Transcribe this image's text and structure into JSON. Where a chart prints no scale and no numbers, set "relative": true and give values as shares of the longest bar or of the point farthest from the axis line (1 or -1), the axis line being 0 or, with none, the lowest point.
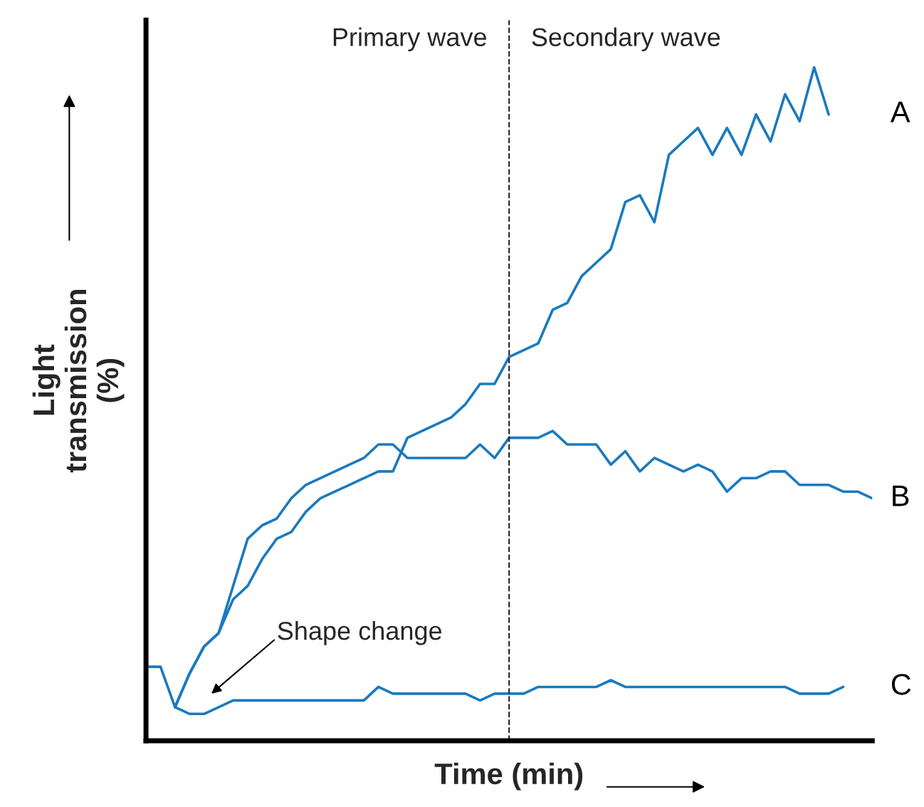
{
  "chart_data": {
    "type": "line",
    "relative": true,
    "xlabel": "Time (min)",
    "ylabel": "Light\ntransmission\n(%)",
    "categories": [
      null,
      null,
      null,
      null,
      null,
      null,
      null,
      null,
      null,
      null,
      null,
      null,
      null,
      null,
      null,
      null,
      null,
      null,
      null,
      null,
      null,
      null,
      null,
      null,
      null,
      null,
      null,
      null,
      null,
      null,
      null,
      null,
      null,
      null,
      null,
      null,
      null,
      null,
      null,
      null,
      null,
      null,
      null,
      null,
      null,
      null,
      null,
      null,
      null,
      null,
      null
    ],
    "series": [
      {
        "name": "A",
        "color": "#1a7abf",
        "values": [
          null,
          null,
          0.05,
          0.1,
          0.14,
          0.16,
          0.21,
          0.23,
          0.27,
          0.3,
          0.31,
          0.34,
          0.36,
          0.37,
          0.38,
          0.39,
          0.4,
          0.4,
          0.45,
          0.46,
          0.47,
          0.48,
          0.5,
          0.53,
          0.53,
          0.57,
          0.58,
          0.59,
          0.64,
          0.65,
          0.69,
          0.71,
          0.73,
          0.8,
          0.81,
          0.77,
          0.87,
          0.89,
          0.91,
          0.87,
          0.91,
          0.87,
          0.93,
          0.89,
          0.96,
          0.92,
          1.0,
          0.93,
          null,
          null,
          null
        ]
      },
      {
        "name": "B",
        "color": "#1a7abf",
        "values": [
          null,
          null,
          0.05,
          0.1,
          0.14,
          0.16,
          0.23,
          0.3,
          0.32,
          0.33,
          0.36,
          0.38,
          0.39,
          0.4,
          0.41,
          0.42,
          0.44,
          0.44,
          0.42,
          0.42,
          0.42,
          0.42,
          0.42,
          0.44,
          0.42,
          0.45,
          0.45,
          0.45,
          0.46,
          0.44,
          0.44,
          0.44,
          0.41,
          0.43,
          0.4,
          0.42,
          0.41,
          0.4,
          0.41,
          0.4,
          0.37,
          0.39,
          0.39,
          0.4,
          0.4,
          0.38,
          0.38,
          0.38,
          0.37,
          0.37,
          0.36
        ]
      },
      {
        "name": "C",
        "color": "#1a7abf",
        "values": [
          0.11,
          0.11,
          0.05,
          0.04,
          0.04,
          0.05,
          0.06,
          0.06,
          0.06,
          0.06,
          0.06,
          0.06,
          0.06,
          0.06,
          0.06,
          0.06,
          0.08,
          0.07,
          0.07,
          0.07,
          0.07,
          0.07,
          0.07,
          0.06,
          0.07,
          0.07,
          0.07,
          0.08,
          0.08,
          0.08,
          0.08,
          0.08,
          0.09,
          0.08,
          0.08,
          0.08,
          0.08,
          0.08,
          0.08,
          0.08,
          0.08,
          0.08,
          0.08,
          0.08,
          0.08,
          0.07,
          0.07,
          0.07,
          0.08,
          null,
          null
        ]
      }
    ],
    "annotations": [
      "Primary wave",
      "Secondary wave",
      "Shape change"
    ],
    "legend": false,
    "tick_labels": false
  }
}
